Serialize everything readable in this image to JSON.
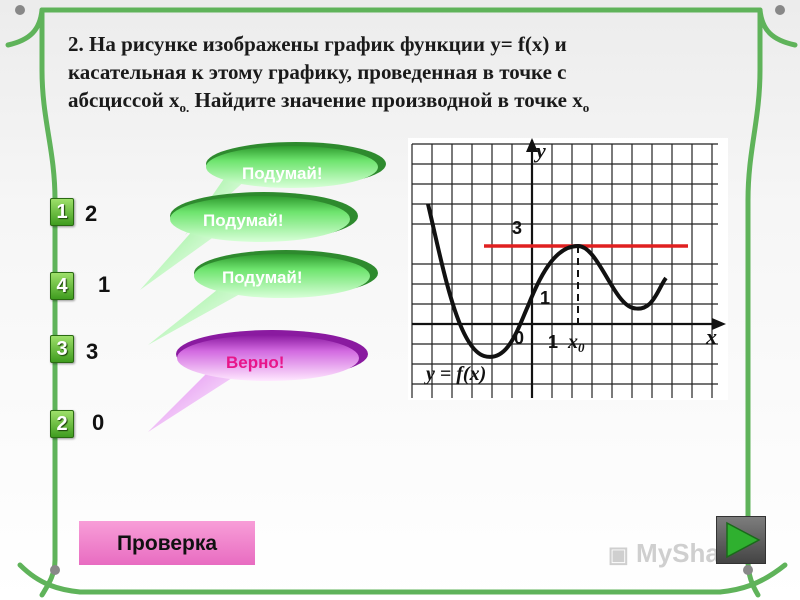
{
  "question": {
    "number": "2.",
    "line1_a": "На рисунке изображены график функции  y= f(x) и",
    "line2": "касательная к этому графику, проведенная в точке с",
    "line3_a": "абсциссой x",
    "line3_sub1": "o.",
    "line3_b": " Найдите значение производной в точке x",
    "line3_sub2": "o"
  },
  "answers": [
    {
      "badge": "1",
      "value": "2"
    },
    {
      "badge": "4",
      "value": "1"
    },
    {
      "badge": "3",
      "value": "3"
    },
    {
      "badge": "2",
      "value": "0"
    }
  ],
  "feedback": {
    "think1": "Подумай!",
    "think2": "Подумай!",
    "think3": "Подумай!",
    "correct": "Верно!"
  },
  "graph": {
    "y_axis": "y",
    "x_axis": "x",
    "tick_3": "3",
    "tick_1y": "1",
    "tick_0": "0",
    "tick_1x": "1",
    "x0": "x",
    "x0_sub": "0",
    "function_label": "y = f(x)",
    "tangent_color": "#e02020"
  },
  "controls": {
    "check_label": "Проверка",
    "next_icon": "play-triangle-icon"
  },
  "watermark": "MyShared",
  "colors": {
    "frame_green": "#5fb35a",
    "badge_green": "#3f9c1f",
    "think_bubble": "#5fd45f",
    "correct_bubble": "#c040d0",
    "check_button": "#f08ccf"
  }
}
